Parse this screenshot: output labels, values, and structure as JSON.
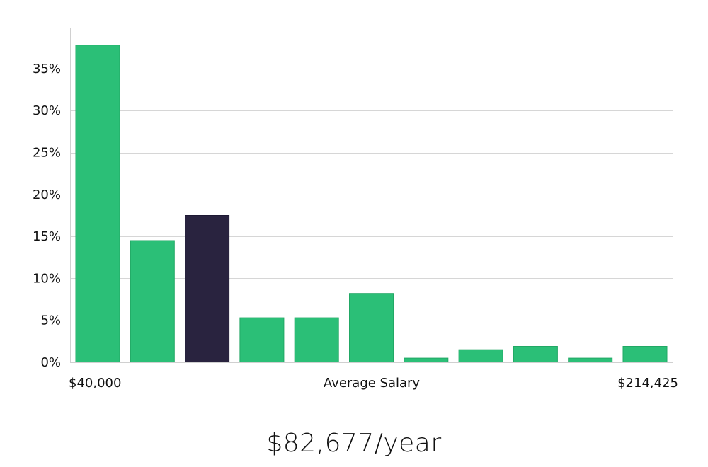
{
  "chart_data": {
    "type": "bar",
    "title": "",
    "xlabel": "Average Salary",
    "ylabel": "",
    "x_min_label": "$40,000",
    "x_max_label": "$214,425",
    "y_unit": "%",
    "ylim": [
      0,
      40
    ],
    "yticks": [
      "0%",
      "5%",
      "10%",
      "15%",
      "20%",
      "25%",
      "30%",
      "35%"
    ],
    "grid": true,
    "values": [
      37.8,
      14.5,
      17.5,
      5.3,
      5.3,
      8.2,
      0.5,
      1.5,
      1.9,
      0.5,
      1.9
    ],
    "highlight_index": 2,
    "colors": {
      "bar": "#2bbf77",
      "highlight": "#29233f",
      "grid": "#d6d6d6",
      "axis": "#cfcfcf"
    }
  },
  "summary": {
    "salary": "$82,677/year"
  }
}
